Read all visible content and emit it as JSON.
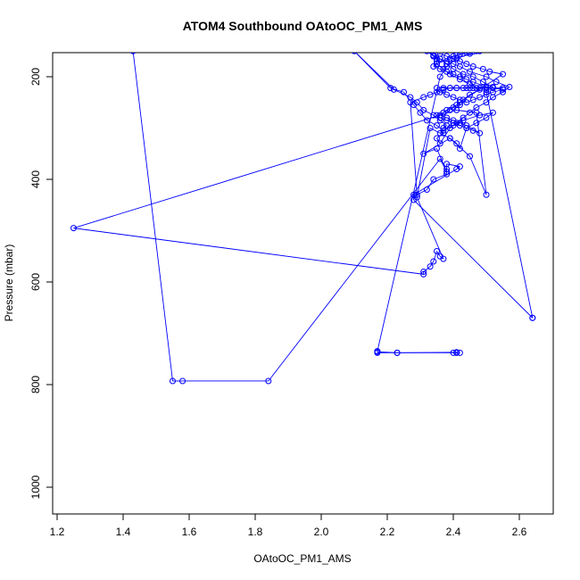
{
  "chart_data": {
    "type": "line",
    "title": "ATOM4 Southbound OAtoOC_PM1_AMS",
    "xlabel": "OAtoOC_PM1_AMS",
    "ylabel": "Pressure (mbar)",
    "xlim": [
      1.2,
      2.7
    ],
    "ylim": [
      1050,
      150
    ],
    "y_reversed": true,
    "x_ticks": [
      1.2,
      1.4,
      1.6,
      1.8,
      2.0,
      2.2,
      2.4,
      2.6
    ],
    "x_tick_labels": [
      "1.2",
      "1.4",
      "1.6",
      "1.8",
      "2.0",
      "2.2",
      "2.4",
      "2.6"
    ],
    "y_ticks": [
      200,
      400,
      600,
      800,
      1000
    ],
    "y_tick_labels": [
      "200",
      "400",
      "600",
      "800",
      "1000"
    ],
    "grid": false,
    "series_color": "#0000ff",
    "marker": "open-circle",
    "x": [
      1.43,
      1.55,
      1.58,
      1.84,
      2.36,
      2.38,
      2.35,
      2.31,
      2.39,
      2.45,
      2.5,
      2.47,
      2.41,
      1.25,
      2.31,
      2.31,
      2.33,
      2.34,
      2.35,
      2.36,
      2.37,
      2.29,
      2.33,
      2.36,
      2.39,
      2.41,
      2.42,
      2.44,
      2.47,
      2.5,
      2.52,
      2.48,
      2.43,
      2.4,
      2.37,
      2.35,
      2.32,
      2.3,
      2.28,
      2.25,
      2.21,
      2.1,
      2.22,
      2.27,
      2.29,
      2.31,
      2.34,
      2.36,
      2.38,
      2.37,
      2.37,
      2.35,
      2.36,
      2.39,
      2.41,
      2.43,
      2.45,
      2.47,
      2.5,
      2.52,
      2.55,
      2.57,
      2.53,
      2.5,
      2.45,
      2.42,
      2.4,
      2.38,
      2.36,
      2.34,
      2.32,
      2.34,
      2.36,
      2.38,
      2.4,
      2.43,
      2.46,
      2.49,
      2.52,
      2.5,
      2.5,
      2.64,
      2.64,
      2.28,
      2.28,
      2.41,
      2.42,
      2.38,
      2.38,
      2.38,
      2.34,
      2.32,
      2.29,
      2.27,
      2.31,
      2.33,
      2.35,
      2.37,
      2.39,
      2.41,
      2.44,
      2.46,
      2.48,
      2.5,
      2.52,
      2.55,
      2.47,
      2.45,
      2.43,
      2.41,
      2.39,
      2.37,
      2.35,
      2.36,
      2.38,
      2.4,
      2.42,
      2.44,
      2.46,
      2.48,
      2.5,
      2.52,
      2.55,
      2.5,
      2.46,
      2.44,
      2.42,
      2.4,
      2.38,
      2.36,
      2.34,
      2.35,
      2.35,
      2.35,
      2.34,
      2.36,
      2.38,
      2.4,
      2.42,
      2.44,
      2.46,
      2.49,
      2.51,
      2.55,
      2.42,
      2.42,
      2.4,
      2.39,
      2.37,
      2.35,
      2.36,
      2.38,
      2.4,
      2.42,
      2.44,
      2.46,
      2.48,
      2.44,
      2.42,
      2.4,
      2.38,
      2.36,
      2.38,
      2.41,
      2.43,
      2.45,
      2.48,
      2.45,
      2.42,
      2.39,
      2.37,
      2.35,
      2.39,
      2.4,
      2.41,
      2.42,
      2.43,
      2.44,
      2.45,
      2.46,
      2.47,
      2.48,
      2.45,
      2.41,
      2.38,
      2.36,
      2.17,
      2.17,
      2.23,
      2.4,
      2.41,
      2.42,
      2.41,
      2.23,
      2.17
    ],
    "y": [
      150,
      793,
      793,
      793,
      360,
      385,
      340,
      350,
      320,
      355,
      430,
      270,
      265,
      495,
      585,
      580,
      570,
      560,
      540,
      550,
      555,
      435,
      300,
      310,
      320,
      330,
      340,
      300,
      290,
      280,
      270,
      275,
      285,
      295,
      305,
      295,
      285,
      270,
      255,
      230,
      222,
      150,
      225,
      240,
      250,
      265,
      275,
      285,
      295,
      300,
      310,
      320,
      330,
      300,
      290,
      280,
      270,
      260,
      250,
      240,
      230,
      220,
      210,
      200,
      190,
      180,
      175,
      170,
      165,
      160,
      150,
      158,
      165,
      175,
      185,
      195,
      200,
      210,
      220,
      225,
      230,
      670,
      670,
      440,
      430,
      380,
      375,
      370,
      380,
      390,
      400,
      420,
      430,
      250,
      240,
      235,
      230,
      225,
      222,
      222,
      222,
      222,
      222,
      222,
      222,
      222,
      222,
      222,
      222,
      222,
      222,
      222,
      222,
      230,
      235,
      240,
      245,
      250,
      245,
      240,
      235,
      230,
      225,
      220,
      210,
      205,
      200,
      195,
      190,
      185,
      180,
      175,
      170,
      165,
      160,
      155,
      160,
      165,
      170,
      175,
      180,
      185,
      190,
      195,
      250,
      255,
      260,
      265,
      270,
      275,
      280,
      285,
      290,
      295,
      300,
      305,
      310,
      295,
      290,
      285,
      280,
      275,
      265,
      255,
      245,
      235,
      225,
      215,
      205,
      195,
      185,
      175,
      165,
      160,
      158,
      156,
      155,
      153,
      152,
      151,
      150,
      150,
      155,
      165,
      180,
      200,
      735,
      738,
      738,
      738,
      738,
      738,
      737,
      738,
      736
    ]
  }
}
